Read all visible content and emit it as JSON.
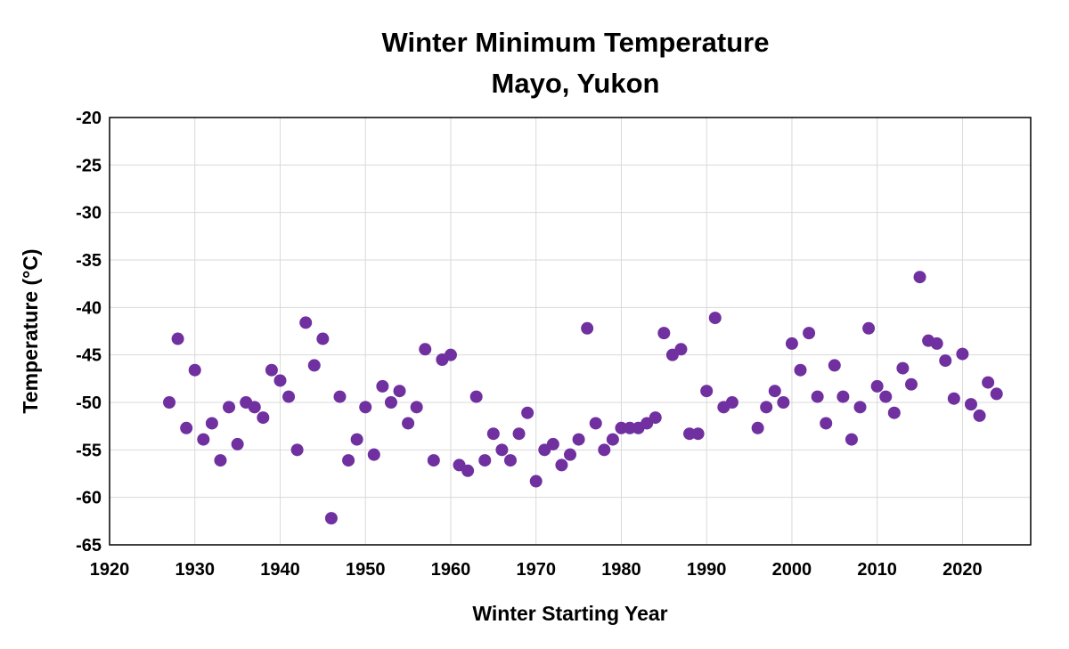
{
  "chart_data": {
    "type": "scatter",
    "title": [
      "Winter Minimum Temperature",
      "Mayo, Yukon"
    ],
    "xlabel": "Winter Starting Year",
    "ylabel": "Temperature (°C)",
    "xlim": [
      1920,
      2028
    ],
    "ylim": [
      -65,
      -20
    ],
    "xticks": [
      1920,
      1930,
      1940,
      1950,
      1960,
      1970,
      1980,
      1990,
      2000,
      2010,
      2020
    ],
    "yticks": [
      -20,
      -25,
      -30,
      -35,
      -40,
      -45,
      -50,
      -55,
      -60,
      -65
    ],
    "grid": true,
    "marker_color": "#7030a0",
    "series": [
      {
        "x": [
          1927,
          1928,
          1929,
          1930,
          1931,
          1932,
          1933,
          1934,
          1935,
          1936,
          1937,
          1938,
          1939,
          1940,
          1941,
          1942,
          1943,
          1944,
          1945,
          1946,
          1947,
          1948,
          1949,
          1950,
          1951,
          1952,
          1953,
          1954,
          1955,
          1956,
          1957,
          1958,
          1959,
          1960,
          1961,
          1962,
          1963,
          1964,
          1965,
          1966,
          1967,
          1968,
          1969,
          1970,
          1971,
          1972,
          1973,
          1974,
          1975,
          1976,
          1977,
          1978,
          1979,
          1980,
          1981,
          1982,
          1983,
          1984,
          1985,
          1986,
          1987,
          1988,
          1989,
          1990,
          1991,
          1992,
          1993,
          1996,
          1997,
          1998,
          1999,
          2000,
          2001,
          2002,
          2003,
          2004,
          2005,
          2006,
          2007,
          2008,
          2009,
          2010,
          2011,
          2012,
          2013,
          2014,
          2015,
          2016,
          2017,
          2018,
          2019,
          2020,
          2021,
          2022,
          2023,
          2024
        ],
        "y": [
          -50.0,
          -43.3,
          -52.7,
          -46.6,
          -53.9,
          -52.2,
          -56.1,
          -50.5,
          -54.4,
          -50.0,
          -50.5,
          -51.6,
          -46.6,
          -47.7,
          -49.4,
          -55.0,
          -41.6,
          -46.1,
          -43.3,
          -62.2,
          -49.4,
          -56.1,
          -53.9,
          -50.5,
          -55.5,
          -48.3,
          -50.0,
          -48.8,
          -52.2,
          -50.5,
          -44.4,
          -56.1,
          -45.5,
          -45.0,
          -56.6,
          -57.2,
          -49.4,
          -56.1,
          -53.3,
          -55.0,
          -56.1,
          -53.3,
          -51.1,
          -58.3,
          -55.0,
          -54.4,
          -56.6,
          -55.5,
          -53.9,
          -42.2,
          -52.2,
          -55.0,
          -53.9,
          -52.7,
          -52.7,
          -52.7,
          -52.2,
          -51.6,
          -42.7,
          -45.0,
          -44.4,
          -53.3,
          -53.3,
          -48.8,
          -41.1,
          -50.5,
          -50.0,
          -52.7,
          -50.5,
          -48.8,
          -50.0,
          -43.8,
          -46.6,
          -42.7,
          -49.4,
          -52.2,
          -46.1,
          -49.4,
          -53.9,
          -50.5,
          -42.2,
          -48.3,
          -49.4,
          -51.1,
          -46.4,
          -48.1,
          -36.8,
          -43.5,
          -43.8,
          -45.6,
          -49.6,
          -44.9,
          -50.2,
          -51.4,
          -47.9,
          -49.1
        ]
      }
    ]
  }
}
